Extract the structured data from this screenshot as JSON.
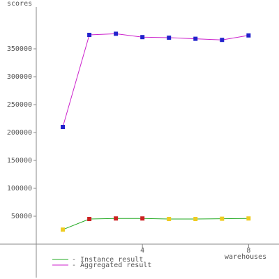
{
  "chart_data": {
    "type": "line",
    "y_label": "scores",
    "x_label": "warehouses",
    "x": [
      1,
      2,
      3,
      4,
      5,
      6,
      7,
      8
    ],
    "series": [
      {
        "name": "- Instance result",
        "color": "#22aa22",
        "values": [
          26000,
          45000,
          46000,
          46000,
          45000,
          45000,
          45500,
          46000
        ],
        "marker_colors": [
          "#eecc22",
          "#cc2222",
          "#cc2222",
          "#cc2222",
          "#eecc22",
          "#eecc22",
          "#eecc22",
          "#eecc22"
        ]
      },
      {
        "name": "- Aggregated result",
        "color": "#cc22cc",
        "values": [
          210000,
          375000,
          377000,
          371000,
          370000,
          368000,
          366000,
          374000
        ],
        "marker_colors": [
          "#2222cc",
          "#2222cc",
          "#2222cc",
          "#2222cc",
          "#2222cc",
          "#2222cc",
          "#2222cc",
          "#2222cc"
        ]
      }
    ],
    "xlim": [
      0,
      9.2
    ],
    "xticks": [
      4,
      8
    ],
    "ylim": [
      -60000,
      425000
    ],
    "yticks": [
      50000,
      100000,
      150000,
      200000,
      250000,
      300000,
      350000
    ]
  }
}
